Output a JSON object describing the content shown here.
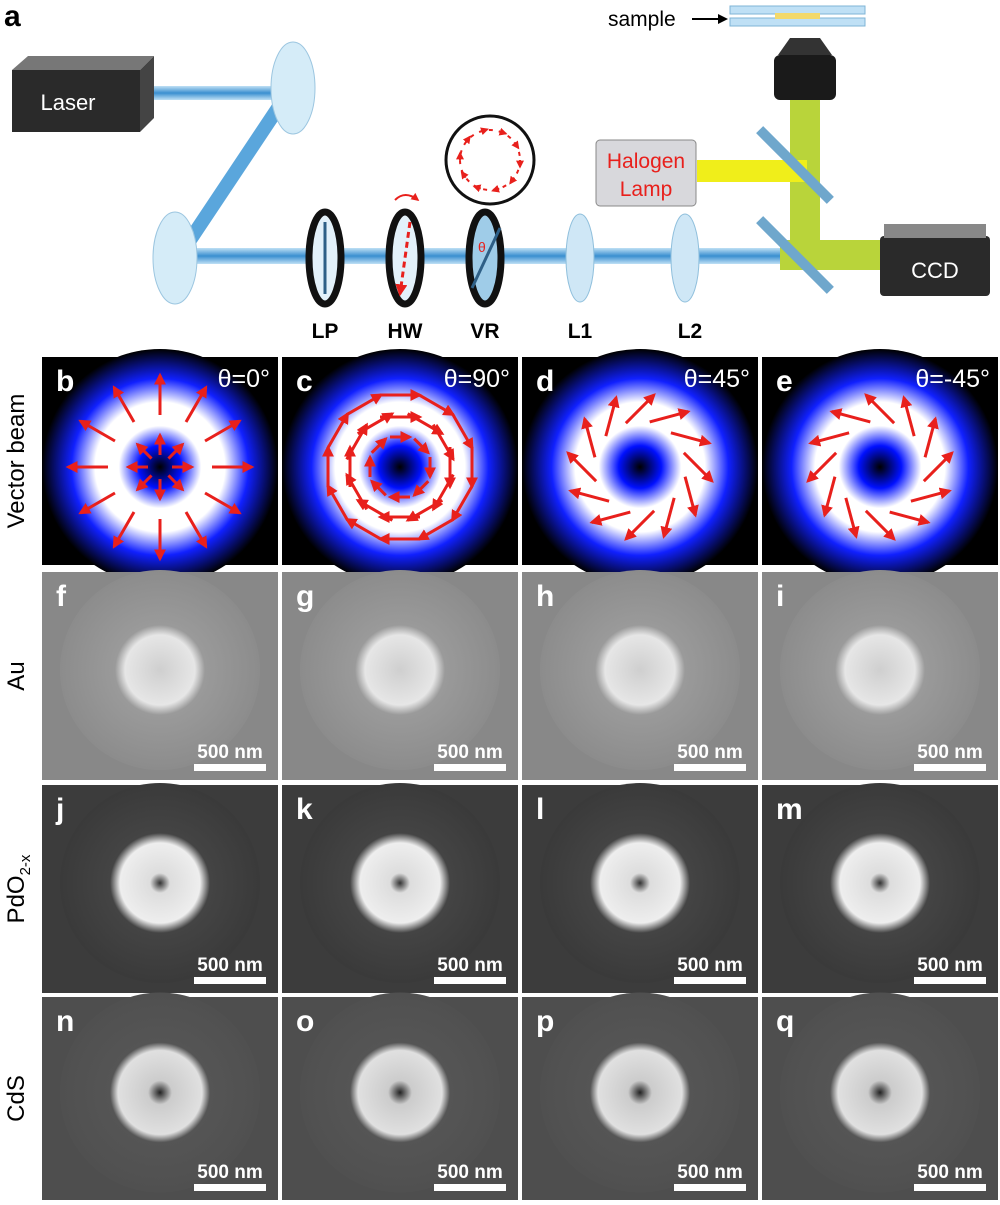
{
  "panel_a": {
    "label": "a",
    "sample": "sample",
    "laser": "Laser",
    "lamp": [
      "Halogen",
      "Lamp"
    ],
    "ccd": "CCD",
    "components": [
      "LP",
      "HW",
      "VR",
      "L1",
      "L2"
    ],
    "theta": "θ"
  },
  "grid": {
    "rows": [
      {
        "label": "Vector beam",
        "panels": [
          {
            "label": "b",
            "theta": "θ=0°"
          },
          {
            "label": "c",
            "theta": "θ=90°"
          },
          {
            "label": "d",
            "theta": "θ=45°"
          },
          {
            "label": "e",
            "theta": "θ=-45°"
          }
        ]
      },
      {
        "label": "Au",
        "panels": [
          {
            "label": "f",
            "scale": "500 nm"
          },
          {
            "label": "g",
            "scale": "500 nm"
          },
          {
            "label": "h",
            "scale": "500 nm"
          },
          {
            "label": "i",
            "scale": "500 nm"
          }
        ]
      },
      {
        "label": "PdO",
        "label_sub": "2-x",
        "panels": [
          {
            "label": "j",
            "scale": "500 nm"
          },
          {
            "label": "k",
            "scale": "500 nm"
          },
          {
            "label": "l",
            "scale": "500 nm"
          },
          {
            "label": "m",
            "scale": "500 nm"
          }
        ]
      },
      {
        "label": "CdS",
        "panels": [
          {
            "label": "n",
            "scale": "500 nm"
          },
          {
            "label": "o",
            "scale": "500 nm"
          },
          {
            "label": "p",
            "scale": "500 nm"
          },
          {
            "label": "q",
            "scale": "500 nm"
          }
        ]
      }
    ]
  }
}
